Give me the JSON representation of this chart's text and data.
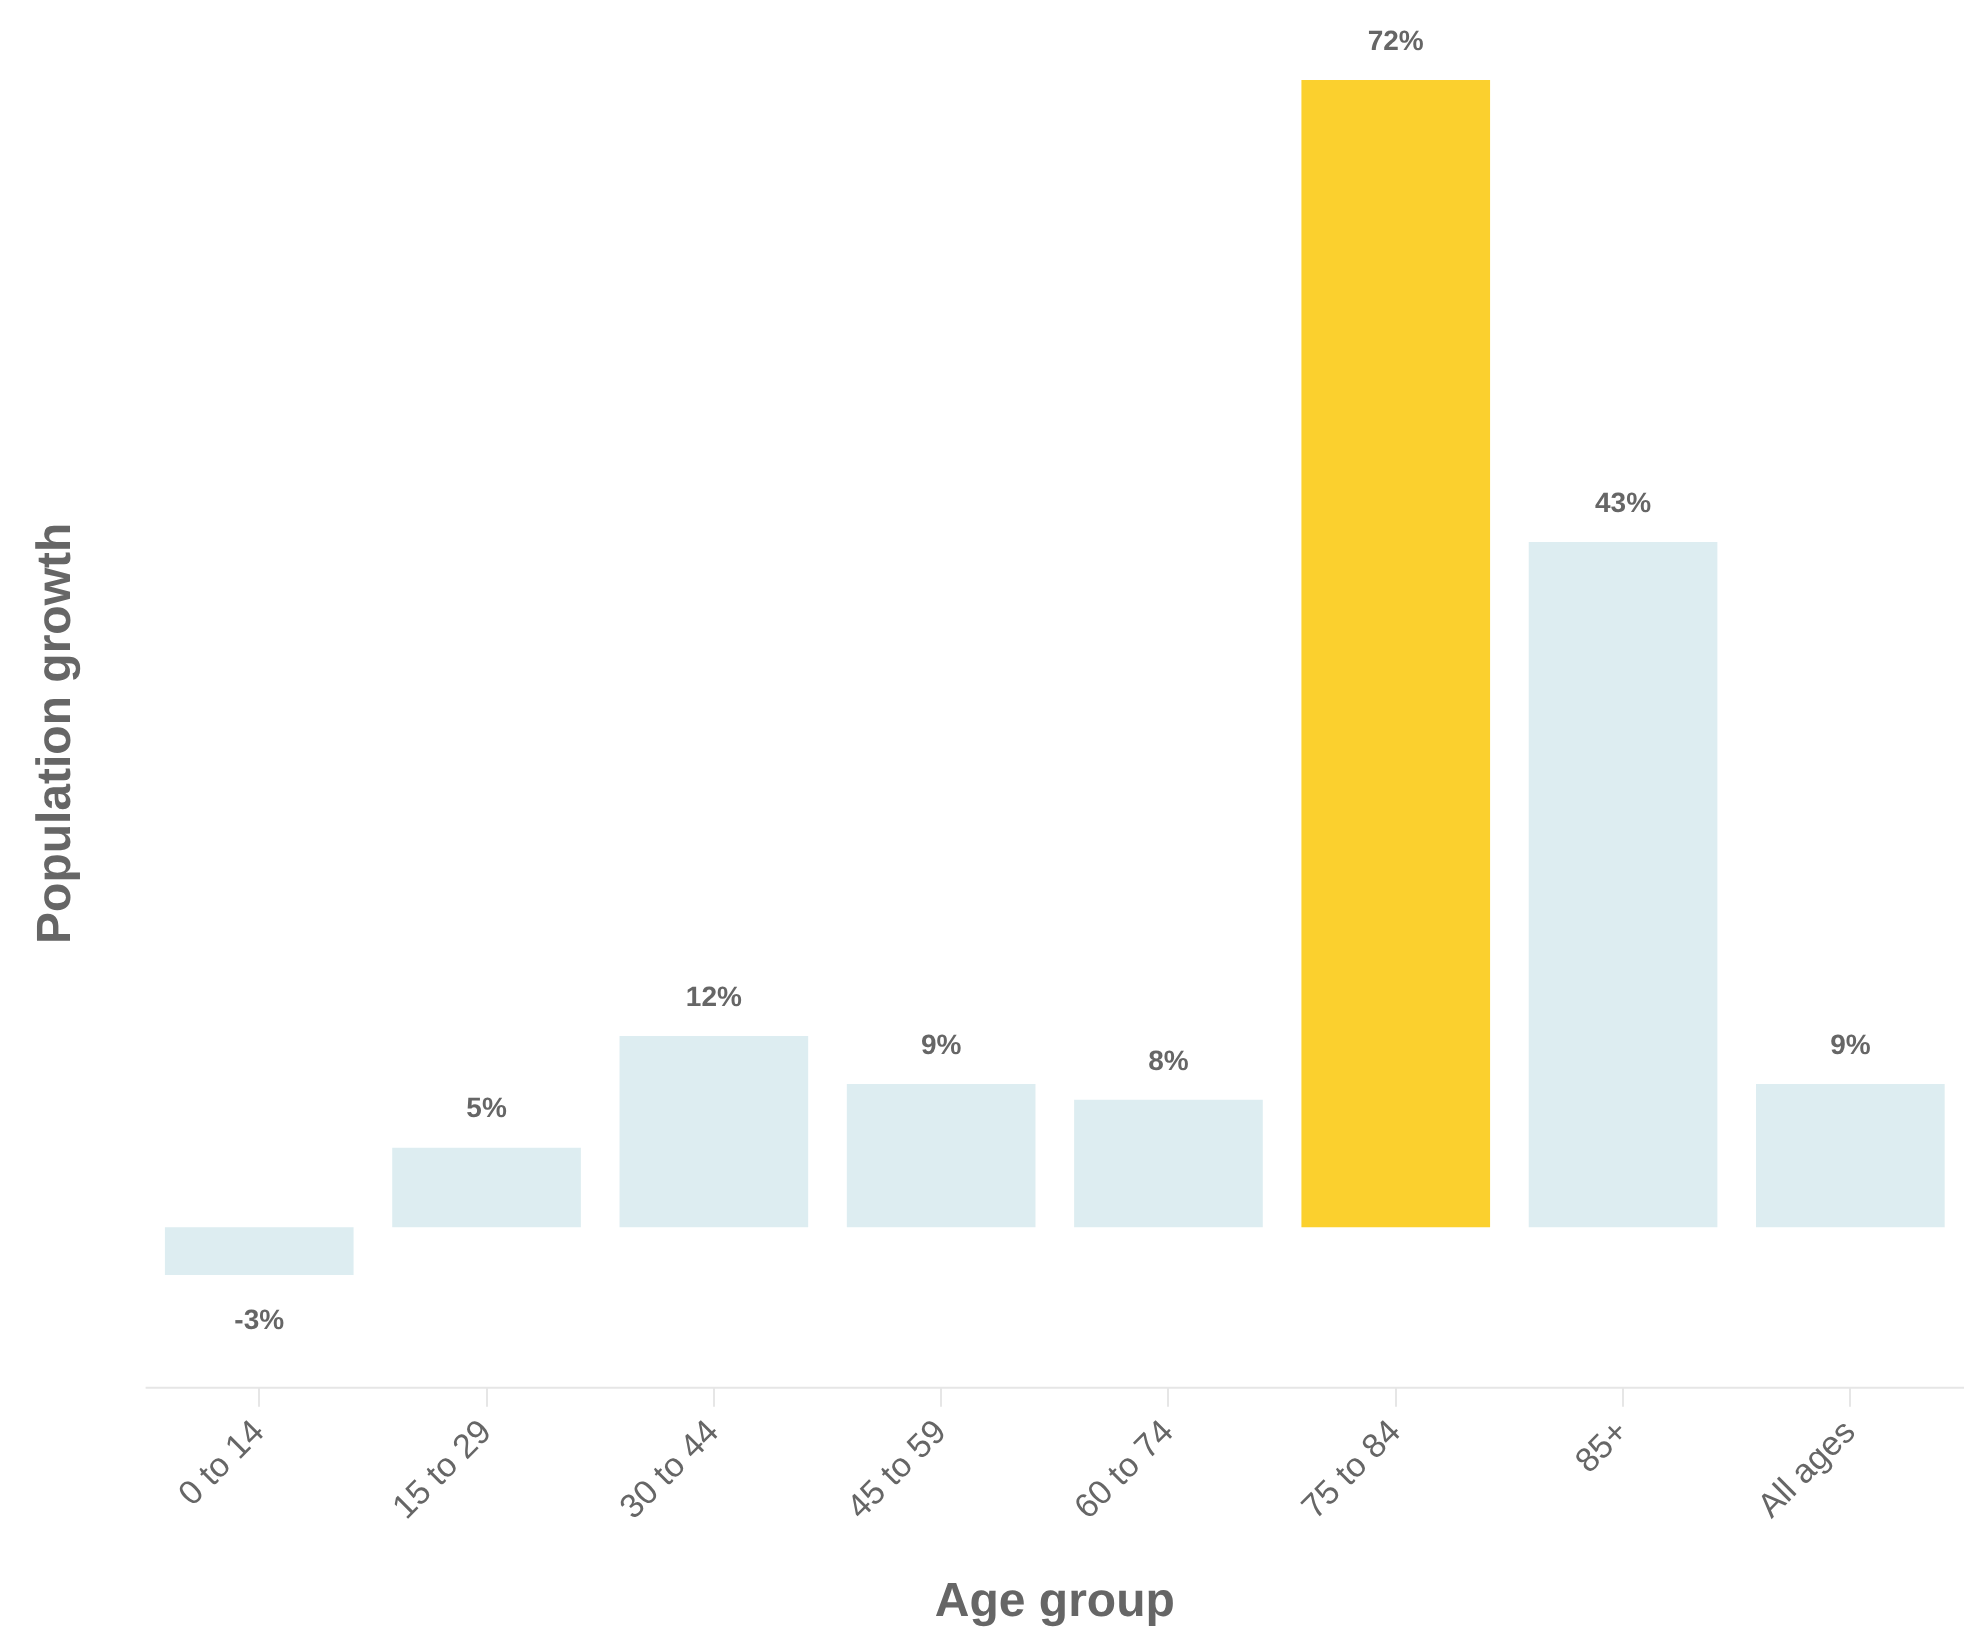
{
  "chart_data": {
    "type": "bar",
    "xlabel": "Age group",
    "ylabel": "Population growth",
    "categories": [
      "0 to 14",
      "15 to 29",
      "30 to 44",
      "45 to 59",
      "60 to 74",
      "75 to 84",
      "85+",
      "All ages"
    ],
    "values": [
      -3,
      5,
      12,
      9,
      8,
      72,
      43,
      9
    ],
    "value_labels": [
      "-3%",
      "5%",
      "12%",
      "9%",
      "8%",
      "72%",
      "43%",
      "9%"
    ],
    "colors": [
      "#ddedf1",
      "#ddedf1",
      "#ddedf1",
      "#ddedf1",
      "#ddedf1",
      "#fbd02e",
      "#ddedf1",
      "#ddedf1"
    ],
    "ylim": [
      -10,
      72
    ],
    "tick_labels": "x",
    "grid": false,
    "legend": false
  }
}
